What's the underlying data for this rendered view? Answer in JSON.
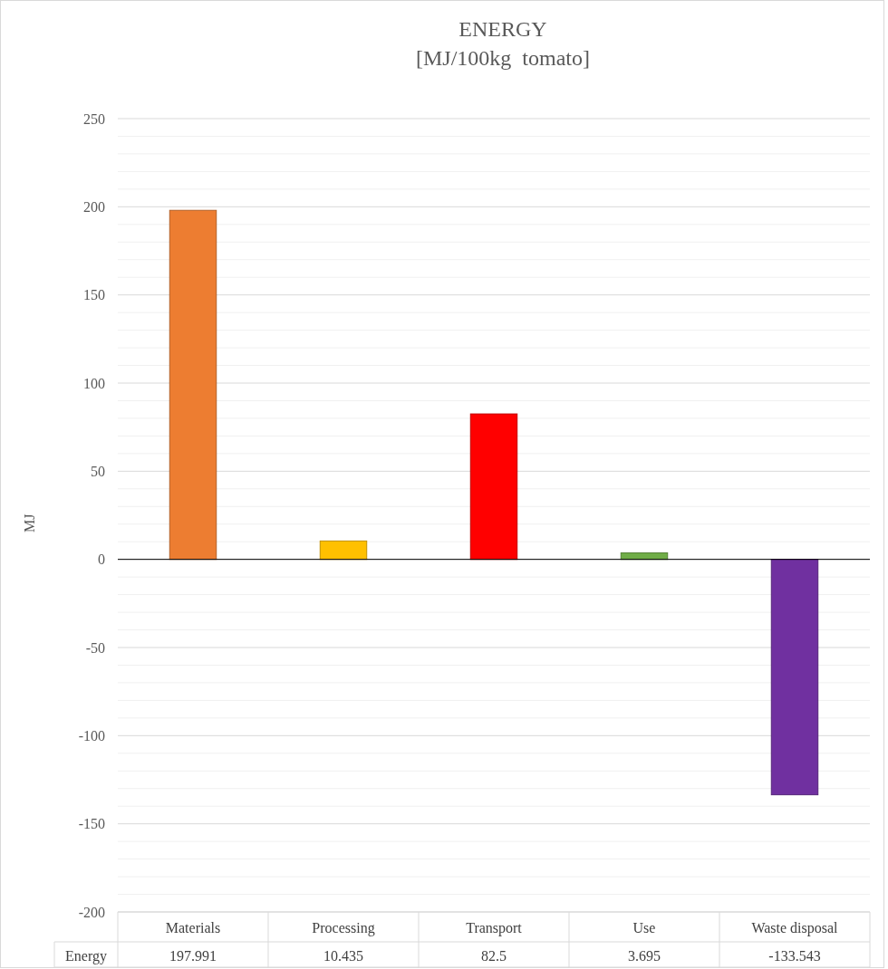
{
  "chart_data": {
    "type": "bar",
    "title": "ENERGY",
    "subtitle": "[MJ/100kg  tomato]",
    "ylabel": "MJ",
    "categories": [
      "Materials",
      "Processing",
      "Transport",
      "Use",
      "Waste disposal"
    ],
    "series": [
      {
        "name": "Energy",
        "colors": [
          "#ed7d31",
          "#ffc000",
          "#ff0000",
          "#70ad47",
          "#7030a0"
        ],
        "values": [
          197.991,
          10.435,
          82.5,
          3.695,
          -133.543
        ]
      }
    ],
    "data_labels": true,
    "value_labels": [
      "197.991",
      "10.435",
      "82.5",
      "3.695",
      "-133.543"
    ],
    "ylim": [
      -200,
      250
    ],
    "yticks": [
      -200,
      {
        "value": -190,
        "label": null
      },
      {
        "value": -180,
        "label": null
      },
      {
        "value": -170,
        "label": null
      },
      {
        "value": -160,
        "label": null
      },
      -150,
      {
        "value": -140,
        "label": null
      },
      {
        "value": -130,
        "label": null
      },
      {
        "value": -120,
        "label": null
      },
      {
        "value": -110,
        "label": null
      },
      -100,
      {
        "value": -90,
        "label": null
      },
      {
        "value": -80,
        "label": null
      },
      {
        "value": -70,
        "label": null
      },
      {
        "value": -60,
        "label": null
      },
      -50,
      {
        "value": -40,
        "label": null
      },
      {
        "value": -30,
        "label": null
      },
      {
        "value": -20,
        "label": null
      },
      {
        "value": -10,
        "label": null
      },
      0,
      {
        "value": 10,
        "label": null
      },
      {
        "value": 20,
        "label": null
      },
      {
        "value": 30,
        "label": null
      },
      {
        "value": 40,
        "label": null
      },
      50,
      {
        "value": 60,
        "label": null
      },
      {
        "value": 70,
        "label": null
      },
      {
        "value": 80,
        "label": null
      },
      {
        "value": 90,
        "label": null
      },
      100,
      {
        "value": 110,
        "label": null
      },
      {
        "value": 120,
        "label": null
      },
      {
        "value": 130,
        "label": null
      },
      {
        "value": 140,
        "label": null
      },
      150,
      {
        "value": 160,
        "label": null
      },
      {
        "value": 170,
        "label": null
      },
      {
        "value": 180,
        "label": null
      },
      {
        "value": 190,
        "label": null
      },
      200,
      {
        "value": 210,
        "label": null
      },
      {
        "value": 220,
        "label": null
      },
      {
        "value": 230,
        "label": null
      },
      {
        "value": 240,
        "label": null
      },
      250
    ],
    "grid": true
  }
}
